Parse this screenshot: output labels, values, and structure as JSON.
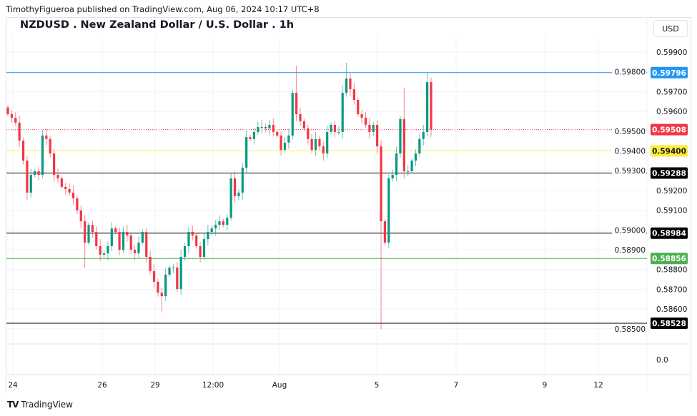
{
  "publisher": "TimothyFigueroa published on TradingView.com, Aug 06, 2024 10:17 UTC+8",
  "footer": {
    "brand": "TradingView",
    "logo_icon": "tradingview-logo-icon"
  },
  "chart_data": {
    "type": "candlestick",
    "title": "NZDUSD . New Zealand Dollar / U.S. Dollar . 1h",
    "currency": "USD",
    "ylim": [
      0.5845,
      0.5997
    ],
    "grid": true,
    "colors": {
      "up": "#089981",
      "down": "#f23645"
    },
    "y_ticks": [
      "0.59900",
      "0.59800",
      "0.59700",
      "0.59600",
      "0.59500",
      "0.59400",
      "0.59300",
      "0.59200",
      "0.59100",
      "0.59000",
      "0.58900",
      "0.58800",
      "0.58700",
      "0.58600",
      "0.58500"
    ],
    "lower_pane_tick": "0.0",
    "x_ticks": [
      "24",
      "26",
      "29",
      "12:00",
      "Aug",
      "5",
      "7",
      "9",
      "12"
    ],
    "closes": [
      0.59586,
      0.59568,
      0.59543,
      0.59452,
      0.59351,
      0.59189,
      0.59279,
      0.59297,
      0.59279,
      0.59478,
      0.5946,
      0.59387,
      0.59279,
      0.59261,
      0.59218,
      0.59207,
      0.59189,
      0.5916,
      0.59099,
      0.59044,
      0.58936,
      0.59026,
      0.5899,
      0.58918,
      0.58875,
      0.58882,
      0.58918,
      0.59008,
      0.5899,
      0.589,
      0.5899,
      0.58972,
      0.589,
      0.58882,
      0.58936,
      0.5899,
      0.58864,
      0.58792,
      0.58738,
      0.58683,
      0.58665,
      0.58774,
      0.5881,
      0.5881,
      0.58701,
      0.58864,
      0.58918,
      0.5899,
      0.58972,
      0.58918,
      0.58864,
      0.58954,
      0.5899,
      0.59008,
      0.59026,
      0.59044,
      0.59026,
      0.59062,
      0.59261,
      0.59171,
      0.59189,
      0.59315,
      0.5947,
      0.5946,
      0.59496,
      0.59521,
      0.59521,
      0.59514,
      0.59532,
      0.59496,
      0.59478,
      0.59405,
      0.59442,
      0.59478,
      0.59694,
      0.59586,
      0.5955,
      0.59514,
      0.5946,
      0.59405,
      0.5946,
      0.59423,
      0.59387,
      0.59496,
      0.59532,
      0.59496,
      0.59496,
      0.59694,
      0.59766,
      0.59712,
      0.59658,
      0.59586,
      0.59568,
      0.59532,
      0.59496,
      0.59532,
      0.59423,
      0.59044,
      0.58936,
      0.59261,
      0.59279,
      0.59387,
      0.59561,
      0.59297,
      0.59297,
      0.59351,
      0.59387,
      0.5946,
      0.59496,
      0.59748,
      0.59508
    ],
    "first_open": 0.5962,
    "extremes": [
      {
        "i": 20,
        "low": 0.58807
      },
      {
        "i": 40,
        "low": 0.58582
      },
      {
        "i": 75,
        "high": 0.59831
      },
      {
        "i": 88,
        "high": 0.59846
      },
      {
        "i": 97,
        "low": 0.58499
      },
      {
        "i": 103,
        "high": 0.5972
      },
      {
        "i": 109,
        "high": 0.59796
      }
    ],
    "horizontal_lines": [
      {
        "price": "0.59796",
        "color": "#2196f3",
        "label_text": "#ffffff",
        "style": "solid"
      },
      {
        "price": "0.59508",
        "color": "#f23645",
        "label_text": "#ffffff",
        "style": "dotted"
      },
      {
        "price": "0.59400",
        "color": "#ffeb3b",
        "label_text": "#131722",
        "style": "solid"
      },
      {
        "price": "0.59288",
        "color": "#000000",
        "label_text": "#ffffff",
        "style": "solid"
      },
      {
        "price": "0.58984",
        "color": "#000000",
        "label_text": "#ffffff",
        "style": "solid"
      },
      {
        "price": "0.58856",
        "color": "#4caf50",
        "label_text": "#ffffff",
        "style": "solid"
      },
      {
        "price": "0.58528",
        "color": "#000000",
        "label_text": "#ffffff",
        "style": "solid"
      }
    ]
  }
}
